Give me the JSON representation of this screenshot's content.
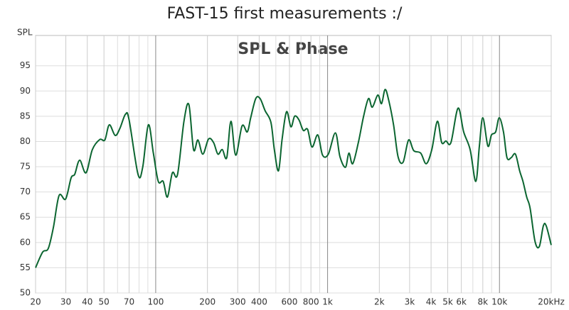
{
  "chart_data": {
    "type": "line",
    "title": "FAST-15 first measurements :/",
    "subtitle": "SPL & Phase",
    "y_label": "SPL",
    "x_scale": "log",
    "xlim": [
      20,
      20000
    ],
    "ylim": [
      50,
      101
    ],
    "xticks": [
      20,
      30,
      40,
      50,
      70,
      100,
      200,
      300,
      400,
      600,
      800,
      {
        "value": 1000,
        "label": "1k"
      },
      {
        "value": 2000,
        "label": "2k"
      },
      {
        "value": 3000,
        "label": "3k"
      },
      {
        "value": 4000,
        "label": "4k"
      },
      {
        "value": 5000,
        "label": "5k"
      },
      {
        "value": 6000,
        "label": "6k"
      },
      {
        "value": 8000,
        "label": "8k"
      },
      {
        "value": 10000,
        "label": "10k"
      },
      {
        "value": 20000,
        "label": "20kHz"
      }
    ],
    "xminorticks": [
      60,
      80,
      90,
      500,
      700,
      900,
      7000,
      9000
    ],
    "yticks": [
      50,
      55,
      60,
      65,
      70,
      75,
      80,
      85,
      90,
      95
    ],
    "grid": true,
    "series": [
      {
        "color": "#0b6530",
        "x": [
          20,
          22,
          23.7,
          25.4,
          27.4,
          29.9,
          32.2,
          33.8,
          36.1,
          39.3,
          42.8,
          47.3,
          50.6,
          53.7,
          58.1,
          61.9,
          66.7,
          70,
          78.9,
          84,
          90.6,
          96.9,
          103.5,
          110.5,
          117,
          125,
          134,
          146,
          156,
          166,
          176,
          188,
          203,
          217,
          230,
          244,
          259,
          274,
          292,
          318,
          341,
          357,
          382,
          405,
          433,
          468,
          490,
          518,
          544,
          577,
          612,
          643,
          681,
          722,
          765,
          812,
          877,
          935,
          1010,
          1110,
          1180,
          1270,
          1330,
          1400,
          1510,
          1620,
          1730,
          1820,
          1960,
          2060,
          2160,
          2270,
          2420,
          2570,
          2750,
          2960,
          3170,
          3480,
          3750,
          4040,
          4350,
          4610,
          4880,
          5220,
          5740,
          6190,
          6750,
          7280,
          7640,
          8000,
          8560,
          8980,
          9500,
          9970,
          10550,
          11060,
          11700,
          12380,
          13100,
          13700,
          14400,
          15070,
          16100,
          17050,
          18000,
          18700,
          20000
        ],
        "values": [
          55,
          58.1,
          58.8,
          63,
          69.3,
          68.6,
          72.8,
          73.5,
          76.3,
          73.8,
          78.4,
          80.4,
          80.3,
          83.3,
          81.2,
          82.6,
          85.4,
          84.3,
          73.5,
          74.9,
          83.3,
          77.7,
          72.1,
          72.1,
          69,
          73.8,
          73.5,
          84,
          87.3,
          78.4,
          80.3,
          77.5,
          80.5,
          79.8,
          77.5,
          78.4,
          76.8,
          84,
          77.3,
          83.1,
          81.9,
          84.7,
          88.5,
          88.5,
          86.1,
          83.8,
          78.4,
          74.2,
          80.5,
          85.9,
          82.9,
          85,
          84.3,
          82.2,
          82.4,
          78.9,
          81.3,
          77.3,
          77.5,
          81.7,
          77,
          74.9,
          77.7,
          75.6,
          79.8,
          85,
          88.5,
          86.8,
          89.2,
          87.5,
          90.3,
          88.1,
          83.3,
          77,
          75.9,
          80.3,
          78.2,
          77.7,
          75.6,
          78.4,
          84,
          79.8,
          80.1,
          79.8,
          86.6,
          81.9,
          78.4,
          72.1,
          79.1,
          84.7,
          79.1,
          81.3,
          81.9,
          84.7,
          81.9,
          76.8,
          76.8,
          77.5,
          74.2,
          72.1,
          69,
          66.8,
          60.2,
          59.2,
          63.3,
          63.3,
          59.5
        ]
      }
    ]
  }
}
